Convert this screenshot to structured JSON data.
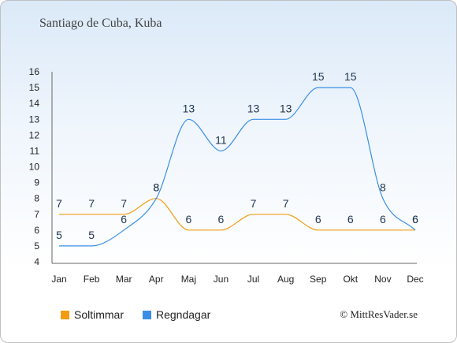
{
  "chart_data": {
    "type": "line",
    "title": "Santiago de Cuba, Kuba",
    "categories": [
      "Jan",
      "Feb",
      "Mar",
      "Apr",
      "Maj",
      "Jun",
      "Jul",
      "Aug",
      "Sep",
      "Okt",
      "Nov",
      "Dec"
    ],
    "series": [
      {
        "name": "Soltimmar",
        "color": "#f39c12",
        "values": [
          7,
          7,
          7,
          8,
          6,
          6,
          7,
          7,
          6,
          6,
          6,
          6
        ]
      },
      {
        "name": "Regndagar",
        "color": "#3a8ee6",
        "values": [
          5,
          5,
          6,
          8,
          13,
          11,
          13,
          13,
          15,
          15,
          8,
          6
        ]
      }
    ],
    "y_ticks": [
      "4",
      "5",
      "6",
      "7",
      "8",
      "9",
      "10",
      "11",
      "12",
      "13",
      "14",
      "15",
      "16"
    ],
    "ylim": [
      4,
      16
    ],
    "grid": false,
    "legend_position": "bottom-left"
  },
  "legend": {
    "item1": "Soltimmar",
    "item2": "Regndagar"
  },
  "credit": "© MittResVader.se"
}
